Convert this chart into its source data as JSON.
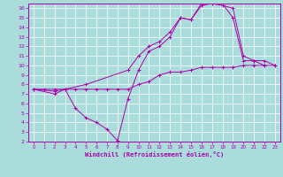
{
  "xlabel": "Windchill (Refroidissement éolien,°C)",
  "background_color": "#aadcdc",
  "grid_color": "#cceeee",
  "line_color": "#aa00aa",
  "xlim": [
    -0.5,
    23.5
  ],
  "ylim": [
    2,
    16.5
  ],
  "xticks": [
    0,
    1,
    2,
    3,
    4,
    5,
    6,
    7,
    8,
    9,
    10,
    11,
    12,
    13,
    14,
    15,
    16,
    17,
    18,
    19,
    20,
    21,
    22,
    23
  ],
  "yticks": [
    2,
    3,
    4,
    5,
    6,
    7,
    8,
    9,
    10,
    11,
    12,
    13,
    14,
    15,
    16
  ],
  "line1_x": [
    0,
    1,
    2,
    3,
    4,
    5,
    6,
    7,
    8,
    9,
    10,
    11,
    12,
    13,
    14,
    15,
    16,
    17,
    18,
    19,
    20,
    21,
    22,
    23
  ],
  "line1_y": [
    7.5,
    7.5,
    7.5,
    7.5,
    7.5,
    7.5,
    7.5,
    7.5,
    7.5,
    7.5,
    8.0,
    8.3,
    9.0,
    9.3,
    9.3,
    9.5,
    9.8,
    9.8,
    9.8,
    9.8,
    10.0,
    10.0,
    10.0,
    10.0
  ],
  "line2_x": [
    0,
    2,
    3,
    4,
    5,
    6,
    7,
    8,
    9,
    10,
    11,
    12,
    13,
    14,
    15,
    16,
    17,
    18,
    19,
    20,
    21,
    22
  ],
  "line2_y": [
    7.5,
    7.0,
    7.5,
    5.5,
    4.5,
    4.0,
    3.3,
    2.1,
    6.5,
    9.5,
    11.5,
    12.0,
    13.0,
    15.0,
    14.8,
    16.3,
    16.5,
    16.5,
    15.0,
    10.5,
    10.5,
    10.0
  ],
  "line3_x": [
    0,
    2,
    3,
    5,
    9,
    10,
    11,
    12,
    13,
    14,
    15,
    16,
    17,
    18,
    19,
    20,
    21,
    22,
    23
  ],
  "line3_y": [
    7.5,
    7.3,
    7.5,
    8.0,
    9.5,
    11.0,
    12.0,
    12.5,
    13.5,
    15.0,
    14.8,
    16.5,
    16.5,
    16.3,
    16.0,
    11.0,
    10.5,
    10.5,
    10.0
  ]
}
